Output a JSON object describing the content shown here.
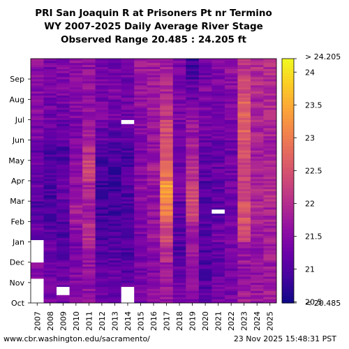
{
  "chart_data": {
    "type": "heatmap",
    "title": "PRI San Joaquin R at Prisoners Pt nr Termino",
    "subtitle": "WY 2007-2025 Daily Average River Stage",
    "range_line": "Observed Range 20.485 : 24.205 ft",
    "x_categories": [
      "2007",
      "2008",
      "2009",
      "2010",
      "2011",
      "2012",
      "2013",
      "2014",
      "2015",
      "2016",
      "2017",
      "2018",
      "2019",
      "2020",
      "2021",
      "2022",
      "2023",
      "2024",
      "2025"
    ],
    "y_categories": [
      "Oct",
      "Nov",
      "Dec",
      "Jan",
      "Feb",
      "Mar",
      "Apr",
      "May",
      "Jun",
      "Jul",
      "Aug",
      "Sep"
    ],
    "colorbar": {
      "min": 20.485,
      "max": 24.205,
      "ticks": [
        "20.5",
        "21",
        "21.5",
        "22",
        "22.5",
        "23",
        "23.5",
        "24"
      ],
      "tick_values": [
        20.5,
        21,
        21.5,
        22,
        22.5,
        23,
        23.5,
        24
      ],
      "top_label": "> 24.205",
      "bottom_label": "< 20.485",
      "colormap": "plasma"
    },
    "monthly_mean_stage": [
      [
        21.6,
        21.5,
        21.4,
        21.2,
        21.0,
        21.2,
        21.3,
        21.2,
        21.4,
        21.5,
        21.5,
        21.6
      ],
      [
        21.4,
        21.3,
        21.2,
        21.1,
        21.0,
        20.9,
        21.0,
        21.0,
        21.2,
        21.3,
        21.3,
        21.4
      ],
      [
        21.3,
        21.2,
        21.1,
        21.0,
        21.1,
        21.2,
        21.1,
        21.0,
        21.1,
        21.3,
        21.4,
        21.5
      ],
      [
        21.6,
        21.5,
        21.4,
        21.6,
        21.8,
        21.6,
        21.6,
        21.4,
        21.4,
        21.5,
        21.5,
        21.6
      ],
      [
        21.6,
        21.7,
        21.8,
        22.0,
        21.8,
        21.9,
        22.3,
        22.0,
        21.8,
        21.6,
        21.6,
        21.6
      ],
      [
        21.2,
        21.1,
        21.0,
        21.0,
        20.9,
        20.8,
        20.9,
        21.0,
        21.2,
        21.4,
        21.4,
        21.4
      ],
      [
        21.2,
        21.2,
        21.1,
        21.0,
        20.9,
        20.9,
        20.9,
        21.0,
        21.1,
        21.3,
        21.4,
        21.3
      ],
      [
        21.2,
        21.1,
        21.0,
        21.1,
        21.0,
        21.0,
        21.0,
        20.9,
        21.1,
        21.3,
        21.3,
        21.3
      ],
      [
        21.4,
        21.4,
        21.3,
        21.4,
        21.4,
        21.6,
        21.5,
        21.4,
        21.5,
        21.6,
        21.7,
        21.7
      ],
      [
        21.6,
        21.5,
        21.5,
        21.7,
        21.6,
        21.6,
        21.8,
        21.7,
        21.7,
        21.8,
        21.8,
        21.8
      ],
      [
        21.7,
        21.8,
        22.0,
        22.4,
        23.0,
        23.4,
        22.8,
        22.6,
        22.4,
        22.1,
        21.9,
        21.8
      ],
      [
        21.4,
        21.2,
        21.0,
        21.1,
        21.1,
        21.4,
        21.3,
        21.2,
        21.3,
        21.4,
        21.4,
        21.4
      ],
      [
        21.5,
        21.6,
        21.7,
        21.8,
        22.3,
        22.4,
        22.0,
        21.9,
        21.7,
        21.6,
        21.2,
        20.9
      ],
      [
        21.1,
        21.0,
        21.0,
        21.0,
        21.0,
        21.0,
        21.1,
        21.2,
        21.3,
        21.4,
        21.5,
        21.3
      ],
      [
        21.3,
        21.2,
        21.1,
        21.3,
        21.1,
        21.1,
        21.2,
        21.2,
        21.3,
        21.4,
        21.4,
        21.4
      ],
      [
        21.4,
        21.3,
        21.4,
        21.4,
        21.2,
        21.3,
        21.3,
        21.3,
        21.4,
        21.5,
        21.5,
        21.6
      ],
      [
        21.8,
        21.6,
        21.7,
        22.4,
        22.5,
        22.2,
        22.3,
        22.5,
        22.7,
        22.7,
        22.4,
        22.1
      ],
      [
        21.7,
        21.6,
        21.6,
        21.8,
        22.0,
        21.9,
        21.8,
        21.8,
        21.9,
        21.9,
        22.0,
        22.0
      ],
      [
        21.8,
        21.7,
        21.8,
        21.8,
        21.9,
        22.0,
        21.9,
        21.8,
        21.9,
        22.0,
        22.0,
        22.0
      ]
    ],
    "missing_data": [
      {
        "year": "2007",
        "period": "Oct–Nov"
      },
      {
        "year": "2007",
        "period": "Dec–Jan"
      },
      {
        "year": "2009",
        "period": "late Oct–early Nov"
      },
      {
        "year": "2014",
        "period": "Oct"
      },
      {
        "year": "2014",
        "period": "early Jul"
      },
      {
        "year": "2021",
        "period": "early Mar"
      }
    ]
  },
  "footer": {
    "left": "www.cbr.washington.edu/sacramento/",
    "right": "23 Nov 2025 15:48:31 PST"
  }
}
